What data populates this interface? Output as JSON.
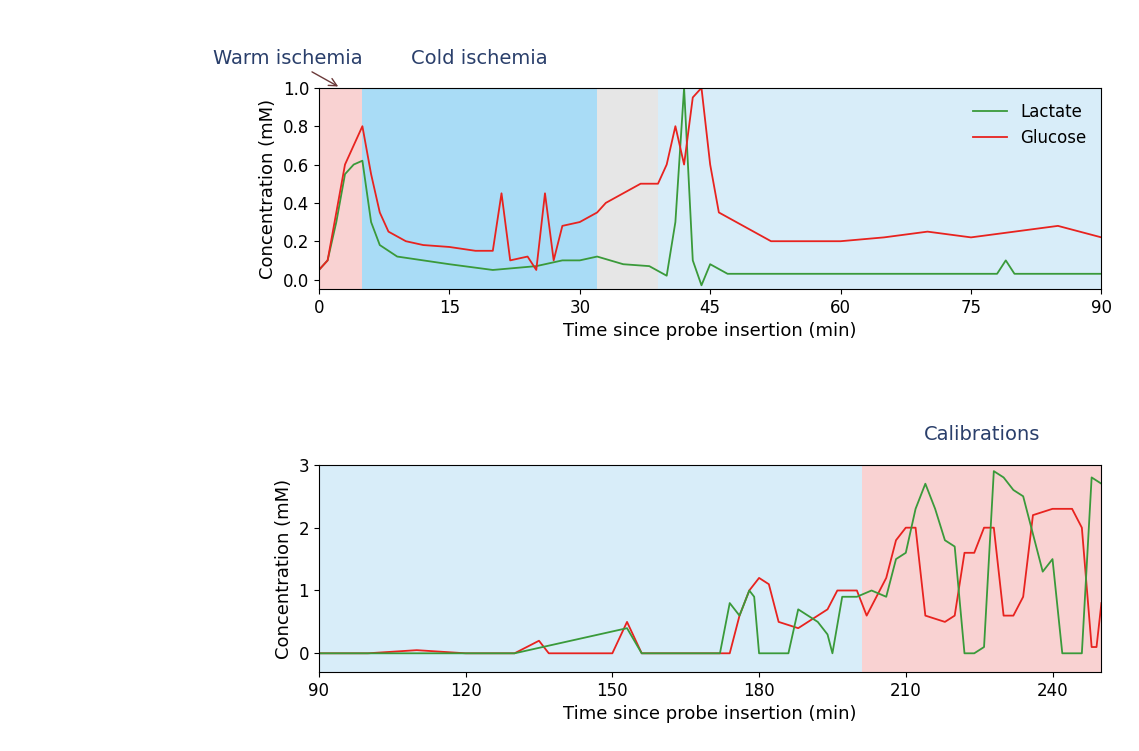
{
  "chart_data": [
    {
      "type": "line",
      "x_label": "Time since probe insertion (min)",
      "y_label": "Concentration (mM)",
      "xlim": [
        0,
        90
      ],
      "xticks": [
        0,
        15,
        30,
        45,
        60,
        75,
        90
      ],
      "ylim": [
        -0.05,
        1.0
      ],
      "yticks": [
        {
          "value": 0,
          "label": "0.0"
        },
        {
          "value": 0.2,
          "label": "0.2"
        },
        {
          "value": 0.4,
          "label": "0.4"
        },
        {
          "value": 0.6,
          "label": "0.6"
        },
        {
          "value": 0.8,
          "label": "0.8"
        },
        {
          "value": 1.0,
          "label": "1.0"
        }
      ],
      "legend": "upper right",
      "regions": [
        {
          "start": 0,
          "end": 5,
          "color": "#f9d2d2",
          "label": "Warm ischemia"
        },
        {
          "start": 5,
          "end": 32,
          "color": "#a9dcf6",
          "label": "Cold ischemia"
        },
        {
          "start": 32,
          "end": 39,
          "color": "#e6e6e6"
        },
        {
          "start": 39,
          "end": 90,
          "color": "#d8edf9"
        }
      ],
      "series": [
        {
          "name": "Lactate",
          "color": "#3a9a3a",
          "x": [
            0,
            1,
            2,
            3,
            4,
            5,
            6,
            7,
            9,
            12,
            15,
            20,
            25,
            28,
            30,
            32,
            35,
            38,
            40,
            41,
            42,
            43,
            44,
            45,
            47,
            50,
            60,
            70,
            78,
            79,
            80,
            90
          ],
          "values": [
            0.05,
            0.1,
            0.3,
            0.55,
            0.6,
            0.62,
            0.3,
            0.18,
            0.12,
            0.1,
            0.08,
            0.05,
            0.07,
            0.1,
            0.1,
            0.12,
            0.08,
            0.07,
            0.02,
            0.3,
            1.0,
            0.1,
            -0.03,
            0.08,
            0.03,
            0.03,
            0.03,
            0.03,
            0.03,
            0.1,
            0.03,
            0.03
          ]
        },
        {
          "name": "Glucose",
          "color": "#e8231f",
          "x": [
            0,
            1,
            2,
            3,
            4,
            5,
            6,
            7,
            8,
            10,
            12,
            15,
            18,
            20,
            21,
            22,
            24,
            25,
            26,
            27,
            28,
            30,
            32,
            33,
            35,
            37,
            39,
            40,
            41,
            42,
            43,
            44,
            45,
            46,
            48,
            50,
            52,
            55,
            60,
            65,
            70,
            75,
            80,
            85,
            90
          ],
          "values": [
            0.05,
            0.1,
            0.35,
            0.6,
            0.7,
            0.8,
            0.55,
            0.35,
            0.25,
            0.2,
            0.18,
            0.17,
            0.15,
            0.15,
            0.45,
            0.1,
            0.12,
            0.05,
            0.45,
            0.1,
            0.28,
            0.3,
            0.35,
            0.4,
            0.45,
            0.5,
            0.5,
            0.6,
            0.8,
            0.6,
            0.95,
            1.0,
            0.6,
            0.35,
            0.3,
            0.25,
            0.2,
            0.2,
            0.2,
            0.22,
            0.25,
            0.22,
            0.25,
            0.28,
            0.22
          ]
        }
      ]
    },
    {
      "type": "line",
      "x_label": "Time since probe insertion (min)",
      "y_label": "Concentration (mM)",
      "xlim": [
        90,
        250
      ],
      "xticks": [
        90,
        120,
        150,
        180,
        210,
        240
      ],
      "ylim": [
        -0.3,
        3
      ],
      "yticks": [
        0,
        1,
        2,
        3
      ],
      "regions": [
        {
          "start": 90,
          "end": 201,
          "color": "#d8edf9"
        },
        {
          "start": 201,
          "end": 250,
          "color": "#f9d2d2",
          "label": "Calibrations"
        }
      ],
      "series": [
        {
          "color": "#e8231f",
          "x": [
            90,
            100,
            110,
            120,
            130,
            135,
            137,
            150,
            153,
            156,
            170,
            174,
            176,
            178,
            180,
            182,
            184,
            188,
            192,
            194,
            196,
            200,
            202,
            206,
            208,
            210,
            212,
            214,
            218,
            220,
            222,
            224,
            226,
            228,
            230,
            232,
            234,
            236,
            240,
            244,
            246,
            248,
            249,
            250
          ],
          "values": [
            0,
            0,
            0.05,
            0,
            0,
            0.2,
            0,
            0,
            0.5,
            0,
            0,
            0,
            0.6,
            1.0,
            1.2,
            1.1,
            0.5,
            0.4,
            0.6,
            0.7,
            1.0,
            1.0,
            0.6,
            1.2,
            1.8,
            2.0,
            2.0,
            0.6,
            0.5,
            0.6,
            1.6,
            1.6,
            2.0,
            2.0,
            0.6,
            0.6,
            0.9,
            2.2,
            2.3,
            2.3,
            2.0,
            0.1,
            0.1,
            0.8
          ]
        },
        {
          "color": "#3a9a3a",
          "x": [
            90,
            130,
            153,
            156,
            172,
            174,
            176,
            178,
            179,
            180,
            186,
            188,
            192,
            194,
            195,
            197,
            200,
            203,
            206,
            208,
            210,
            212,
            214,
            216,
            218,
            220,
            222,
            224,
            226,
            228,
            230,
            232,
            234,
            236,
            238,
            240,
            242,
            246,
            248,
            250
          ],
          "values": [
            0,
            0,
            0.4,
            0,
            0,
            0.8,
            0.6,
            1.0,
            0.9,
            0,
            0,
            0.7,
            0.5,
            0.3,
            0,
            0.9,
            0.9,
            1.0,
            0.9,
            1.5,
            1.6,
            2.3,
            2.7,
            2.3,
            1.8,
            1.7,
            0,
            0,
            0.1,
            2.9,
            2.8,
            2.6,
            2.5,
            1.9,
            1.3,
            1.5,
            0,
            0,
            2.8,
            2.7
          ]
        }
      ]
    }
  ]
}
